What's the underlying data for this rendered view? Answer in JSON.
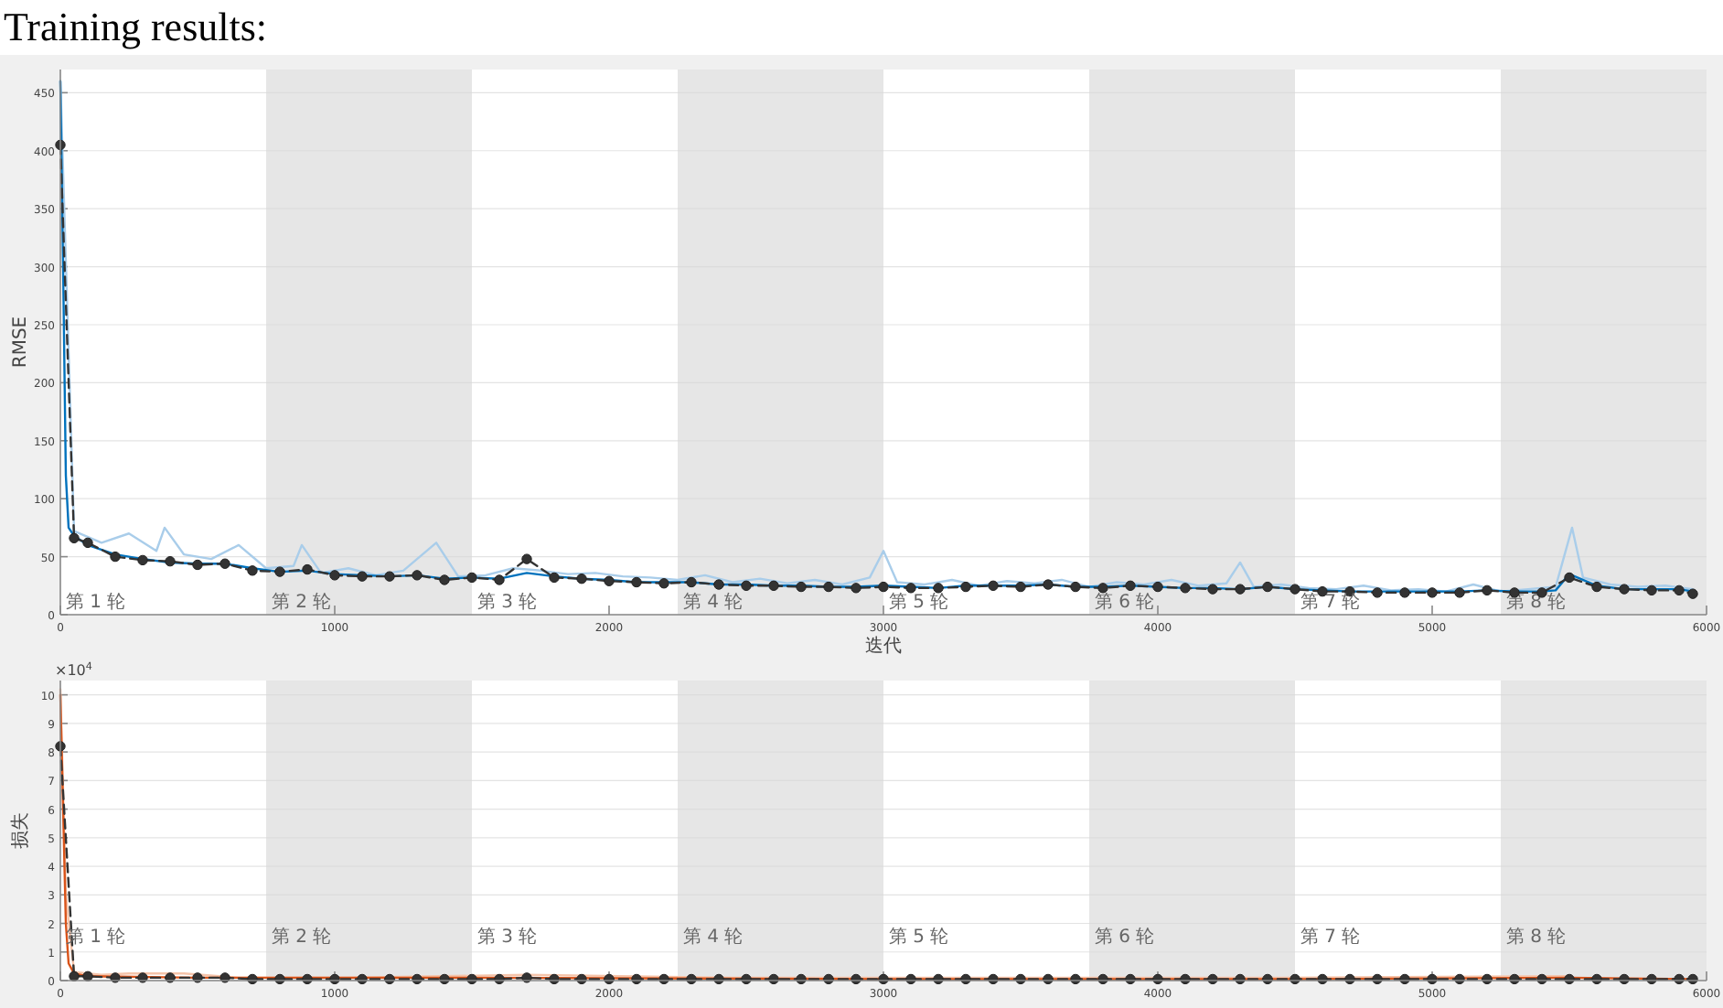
{
  "chart_data": [
    {
      "type": "line",
      "title": "Training results:",
      "xlabel": "迭代",
      "ylabel": "RMSE",
      "xlim": [
        0,
        6000
      ],
      "xticks": [
        0,
        1000,
        2000,
        3000,
        4000,
        5000,
        6000
      ],
      "ylim": [
        0,
        470
      ],
      "yticks": [
        0,
        50,
        100,
        150,
        200,
        250,
        300,
        350,
        400,
        450
      ],
      "grid": "y",
      "bands": [
        {
          "axis": "x",
          "from": 750,
          "to": 1500,
          "label": "第 2 轮",
          "color": "#e6e6e6"
        },
        {
          "axis": "x",
          "from": 2250,
          "to": 3000,
          "label": "第 4 轮",
          "color": "#e6e6e6"
        },
        {
          "axis": "x",
          "from": 3750,
          "to": 4500,
          "label": "第 6 轮",
          "color": "#e6e6e6"
        },
        {
          "axis": "x",
          "from": 5250,
          "to": 6000,
          "label": "第 8 轮",
          "color": "#e6e6e6"
        }
      ],
      "annotations": [
        "第 1 轮",
        "第 3 轮",
        "第 5 轮",
        "第 7 轮"
      ],
      "series": [
        {
          "color": "#a9cdea",
          "line_style": "solid",
          "marker": "none",
          "x": [
            0,
            50,
            150,
            250,
            350,
            380,
            450,
            550,
            650,
            750,
            850,
            880,
            950,
            1050,
            1150,
            1250,
            1370,
            1450,
            1550,
            1650,
            1750,
            1850,
            1950,
            2050,
            2150,
            2250,
            2350,
            2450,
            2550,
            2650,
            2750,
            2850,
            2950,
            3000,
            3050,
            3150,
            3250,
            3350,
            3450,
            3550,
            3650,
            3750,
            3850,
            3950,
            4050,
            4150,
            4250,
            4300,
            4350,
            4450,
            4550,
            4650,
            4750,
            4850,
            4950,
            5050,
            5150,
            5250,
            5350,
            5450,
            5510,
            5550,
            5650,
            5750,
            5850,
            5950
          ],
          "values": [
            460,
            72,
            62,
            70,
            55,
            75,
            52,
            48,
            60,
            40,
            42,
            60,
            36,
            40,
            34,
            38,
            62,
            33,
            34,
            40,
            38,
            35,
            36,
            33,
            32,
            30,
            34,
            28,
            31,
            27,
            30,
            26,
            32,
            55,
            28,
            26,
            30,
            25,
            29,
            27,
            30,
            24,
            28,
            26,
            30,
            25,
            27,
            45,
            24,
            26,
            23,
            22,
            25,
            21,
            22,
            20,
            26,
            20,
            22,
            24,
            75,
            32,
            26,
            24,
            25,
            22
          ]
        },
        {
          "color": "#0072bd",
          "line_style": "solid",
          "marker": "none",
          "x": [
            0,
            10,
            20,
            30,
            50,
            100,
            200,
            300,
            400,
            500,
            600,
            700,
            800,
            900,
            1000,
            1100,
            1200,
            1300,
            1400,
            1500,
            1600,
            1700,
            1800,
            1900,
            2000,
            2100,
            2200,
            2300,
            2400,
            2500,
            2600,
            2700,
            2800,
            2900,
            3000,
            3100,
            3200,
            3300,
            3400,
            3500,
            3600,
            3700,
            3800,
            3900,
            4000,
            4100,
            4200,
            4300,
            4400,
            4500,
            4600,
            4700,
            4800,
            4900,
            5000,
            5100,
            5200,
            5300,
            5400,
            5450,
            5500,
            5600,
            5700,
            5800,
            5900,
            5950
          ],
          "values": [
            460,
            300,
            120,
            75,
            68,
            60,
            52,
            48,
            45,
            44,
            44,
            40,
            37,
            38,
            35,
            34,
            33,
            34,
            31,
            32,
            31,
            36,
            33,
            31,
            30,
            28,
            28,
            28,
            26,
            26,
            25,
            25,
            24,
            24,
            25,
            24,
            23,
            25,
            25,
            25,
            26,
            24,
            24,
            25,
            24,
            23,
            23,
            22,
            24,
            22,
            21,
            20,
            20,
            20,
            20,
            20,
            21,
            20,
            20,
            21,
            35,
            25,
            22,
            22,
            22,
            20
          ]
        },
        {
          "color": "#333333",
          "line_style": "dashed",
          "marker": "circle",
          "x": [
            0,
            50,
            100,
            200,
            300,
            400,
            500,
            600,
            700,
            800,
            900,
            1000,
            1100,
            1200,
            1300,
            1400,
            1500,
            1600,
            1700,
            1800,
            1900,
            2000,
            2100,
            2200,
            2300,
            2400,
            2500,
            2600,
            2700,
            2800,
            2900,
            3000,
            3100,
            3200,
            3300,
            3400,
            3500,
            3600,
            3700,
            3800,
            3900,
            4000,
            4100,
            4200,
            4300,
            4400,
            4500,
            4600,
            4700,
            4800,
            4900,
            5000,
            5100,
            5200,
            5300,
            5400,
            5500,
            5600,
            5700,
            5800,
            5900,
            5950
          ],
          "values": [
            405,
            66,
            62,
            50,
            47,
            46,
            43,
            44,
            38,
            37,
            39,
            34,
            33,
            33,
            34,
            30,
            32,
            30,
            48,
            32,
            31,
            29,
            28,
            27,
            28,
            26,
            25,
            25,
            24,
            24,
            23,
            24,
            23,
            23,
            24,
            25,
            24,
            26,
            24,
            23,
            25,
            24,
            23,
            22,
            22,
            24,
            22,
            20,
            20,
            19,
            19,
            19,
            19,
            21,
            19,
            19,
            32,
            24,
            22,
            21,
            21,
            18
          ]
        }
      ]
    },
    {
      "type": "line",
      "xlim": [
        0,
        6000
      ],
      "xticks": [
        0,
        1000,
        2000,
        3000,
        4000,
        5000,
        6000
      ],
      "ylim": [
        0,
        10.5
      ],
      "yticks": [
        0,
        1,
        2,
        3,
        4,
        5,
        6,
        7,
        8,
        9,
        10
      ],
      "ylabel": "损失",
      "grid": "y",
      "bands": [
        {
          "axis": "x",
          "from": 750,
          "to": 1500,
          "label": "第 2 轮",
          "color": "#e6e6e6"
        },
        {
          "axis": "x",
          "from": 2250,
          "to": 3000,
          "label": "第 4 轮",
          "color": "#e6e6e6"
        },
        {
          "axis": "x",
          "from": 3750,
          "to": 4500,
          "label": "第 6 轮",
          "color": "#e6e6e6"
        },
        {
          "axis": "x",
          "from": 5250,
          "to": 6000,
          "label": "第 8 轮",
          "color": "#e6e6e6"
        }
      ],
      "annotations": [
        "第 1 轮",
        "第 3 轮",
        "第 5 轮",
        "第 7 轮",
        "×10$^{4}$"
      ],
      "series": [
        {
          "color": "#f5c4aa",
          "line_style": "solid",
          "marker": "none",
          "x": [
            0,
            20,
            50,
            150,
            250,
            450,
            650,
            1050,
            1700,
            2450,
            3450,
            4450,
            5510
          ],
          "values": [
            10.2,
            3,
            0.3,
            0.2,
            0.25,
            0.25,
            0.1,
            0.1,
            0.2,
            0.1,
            0.1,
            0.1,
            0.15
          ]
        },
        {
          "color": "#d95319",
          "line_style": "solid",
          "marker": "none",
          "x": [
            0,
            10,
            20,
            30,
            50,
            100,
            500,
            1500,
            3000,
            4500,
            5500,
            5950
          ],
          "values": [
            10,
            6,
            2,
            0.6,
            0.25,
            0.15,
            0.1,
            0.1,
            0.05,
            0.05,
            0.1,
            0.05
          ]
        },
        {
          "color": "#333333",
          "line_style": "dashed",
          "marker": "circle",
          "x": [
            0,
            50,
            100,
            200,
            300,
            400,
            500,
            600,
            700,
            800,
            900,
            1000,
            1100,
            1200,
            1300,
            1400,
            1500,
            1600,
            1700,
            1800,
            1900,
            2000,
            2100,
            2200,
            2300,
            2400,
            2500,
            2600,
            2700,
            2800,
            2900,
            3000,
            3100,
            3200,
            3300,
            3400,
            3500,
            3600,
            3700,
            3800,
            3900,
            4000,
            4100,
            4200,
            4300,
            4400,
            4500,
            4600,
            4700,
            4800,
            4900,
            5000,
            5100,
            5200,
            5300,
            5400,
            5500,
            5600,
            5700,
            5800,
            5900,
            5950
          ],
          "values": [
            8.2,
            0.15,
            0.15,
            0.1,
            0.1,
            0.1,
            0.1,
            0.1,
            0.05,
            0.05,
            0.05,
            0.05,
            0.05,
            0.05,
            0.05,
            0.05,
            0.05,
            0.05,
            0.1,
            0.05,
            0.05,
            0.05,
            0.05,
            0.05,
            0.05,
            0.05,
            0.05,
            0.05,
            0.05,
            0.05,
            0.05,
            0.05,
            0.05,
            0.05,
            0.05,
            0.05,
            0.05,
            0.05,
            0.05,
            0.05,
            0.05,
            0.05,
            0.05,
            0.05,
            0.05,
            0.05,
            0.05,
            0.05,
            0.05,
            0.05,
            0.05,
            0.05,
            0.05,
            0.05,
            0.05,
            0.05,
            0.05,
            0.05,
            0.05,
            0.05,
            0.05,
            0.05
          ]
        }
      ]
    }
  ]
}
